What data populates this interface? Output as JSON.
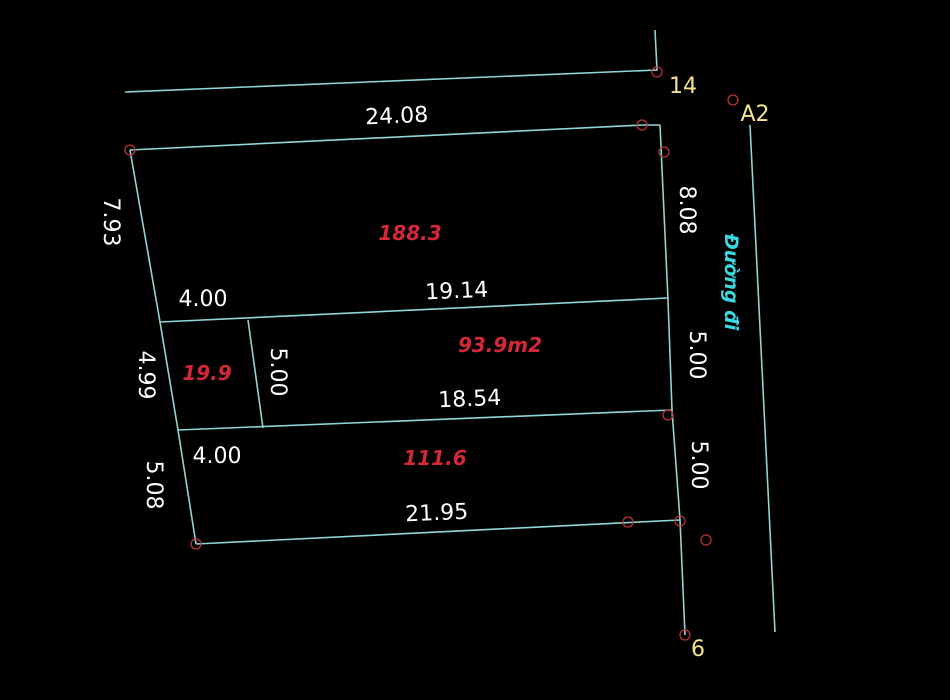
{
  "dimensions": {
    "top_width": "24.08",
    "left_top": "7.93",
    "right_top": "8.08",
    "mid_small_width": "4.00",
    "mid_width": "19.14",
    "left_mid": "4.99",
    "small_plot_side": "5.00",
    "right_mid": "5.00",
    "lower_width": "18.54",
    "bottom_small_width": "4.00",
    "left_bottom": "5.08",
    "right_bottom": "5.00",
    "bottom_width": "21.95"
  },
  "areas": {
    "top_plot": "188.3",
    "middle_plot": "93.9m2",
    "small_plot": "19.9",
    "bottom_plot": "111.6"
  },
  "point_labels": {
    "p14": "14",
    "pA2": "A2",
    "p6": "6"
  },
  "road_label": "Đường đi",
  "colors": {
    "background": "#000000",
    "lines": "#8fd6d6",
    "points": "#c0303a",
    "area_text": "#d42838",
    "dimension_text": "#ffffff",
    "point_text": "#f3e58a",
    "road_text": "#3ad8e0"
  }
}
